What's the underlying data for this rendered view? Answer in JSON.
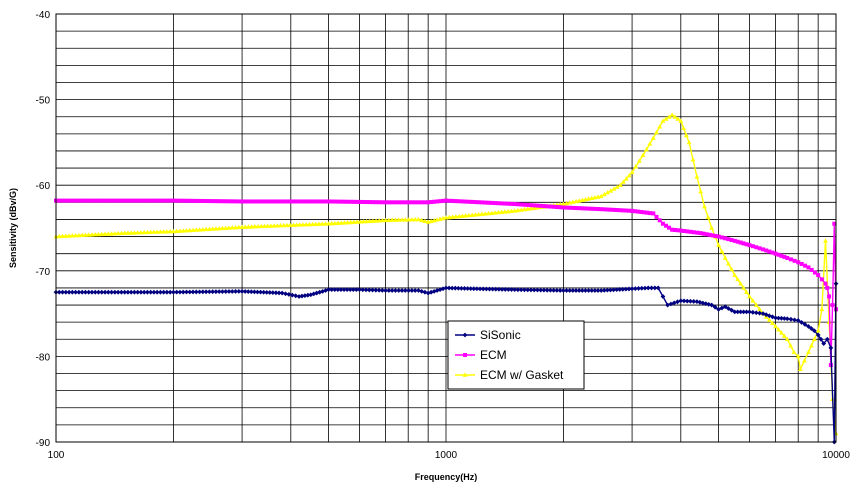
{
  "chart_data": {
    "type": "line",
    "title": "",
    "xlabel": "Frequency(Hz)",
    "ylabel": "Sensitivity (dBv/G)",
    "xscale": "log",
    "xlim": [
      100,
      10000
    ],
    "ylim": [
      -90,
      -40
    ],
    "x_ticks": [
      100,
      1000,
      10000
    ],
    "x_tick_labels": [
      "100",
      "1000",
      "10000"
    ],
    "y_ticks": [
      -90,
      -80,
      -70,
      -60,
      -50,
      -40
    ],
    "y_tick_labels": [
      "-90",
      "-80",
      "-70",
      "-60",
      "-50",
      "-40"
    ],
    "grid": true,
    "legend_position": "center-bottom",
    "series": [
      {
        "name": "SiSonic",
        "color": "#000080",
        "marker": "diamond",
        "x": [
          100,
          150,
          200,
          300,
          380,
          420,
          450,
          500,
          600,
          700,
          850,
          900,
          1000,
          1200,
          1500,
          2000,
          2500,
          3000,
          3300,
          3500,
          3600,
          3700,
          4000,
          4400,
          4800,
          5000,
          5200,
          5500,
          6000,
          6500,
          7000,
          7500,
          8000,
          8500,
          8800,
          9000,
          9300,
          9500,
          9700,
          9900,
          10000
        ],
        "y": [
          -72.5,
          -72.5,
          -72.5,
          -72.4,
          -72.6,
          -73.0,
          -72.8,
          -72.2,
          -72.2,
          -72.3,
          -72.3,
          -72.6,
          -72.0,
          -72.1,
          -72.2,
          -72.3,
          -72.3,
          -72.1,
          -72.0,
          -72.0,
          -73.0,
          -74.0,
          -73.5,
          -73.6,
          -74.0,
          -74.5,
          -74.2,
          -74.8,
          -74.8,
          -75.0,
          -75.5,
          -75.6,
          -75.8,
          -76.5,
          -77.0,
          -77.5,
          -78.5,
          -78.0,
          -79.0,
          -90.0,
          -71.5
        ]
      },
      {
        "name": "ECM",
        "color": "#FF00FF",
        "marker": "square",
        "x": [
          100,
          150,
          200,
          300,
          500,
          700,
          900,
          1000,
          1500,
          2000,
          2500,
          3000,
          3400,
          3600,
          3800,
          4000,
          4500,
          5000,
          5500,
          6000,
          6500,
          7000,
          7500,
          8000,
          8500,
          9000,
          9200,
          9400,
          9500,
          9600,
          9700,
          9800,
          9900,
          10000
        ],
        "y": [
          -61.8,
          -61.8,
          -61.8,
          -61.9,
          -61.9,
          -62.0,
          -62.0,
          -61.8,
          -62.2,
          -62.6,
          -62.8,
          -63.0,
          -63.3,
          -64.5,
          -65.2,
          -65.3,
          -65.6,
          -66.0,
          -66.5,
          -67.0,
          -67.5,
          -68.0,
          -68.5,
          -69.0,
          -69.6,
          -70.5,
          -71.0,
          -71.5,
          -72.0,
          -73.0,
          -81.0,
          -74.0,
          -64.5,
          -74.5
        ]
      },
      {
        "name": "ECM w/ Gasket",
        "color": "#FFFF00",
        "marker": "triangle",
        "x": [
          100,
          150,
          200,
          300,
          500,
          700,
          850,
          900,
          1000,
          1500,
          2000,
          2500,
          2800,
          3000,
          3200,
          3400,
          3600,
          3800,
          4000,
          4200,
          4400,
          4600,
          4800,
          5000,
          5200,
          5500,
          6000,
          6500,
          7000,
          7500,
          7800,
          8000,
          8100,
          8300,
          8500,
          8800,
          9000,
          9200,
          9400,
          9600,
          9800,
          10000
        ],
        "y": [
          -66.0,
          -65.6,
          -65.4,
          -64.9,
          -64.5,
          -64.1,
          -64.0,
          -64.3,
          -63.8,
          -63.0,
          -62.2,
          -61.3,
          -60.0,
          -58.5,
          -56.5,
          -54.5,
          -52.5,
          -51.8,
          -52.5,
          -55.0,
          -59.0,
          -62.5,
          -65.0,
          -67.0,
          -68.5,
          -70.5,
          -73.0,
          -75.0,
          -76.5,
          -78.0,
          -79.5,
          -80.0,
          -81.5,
          -80.5,
          -79.5,
          -78.0,
          -77.0,
          -74.5,
          -66.5,
          -76.0,
          -85.0,
          -89.0
        ]
      }
    ]
  }
}
